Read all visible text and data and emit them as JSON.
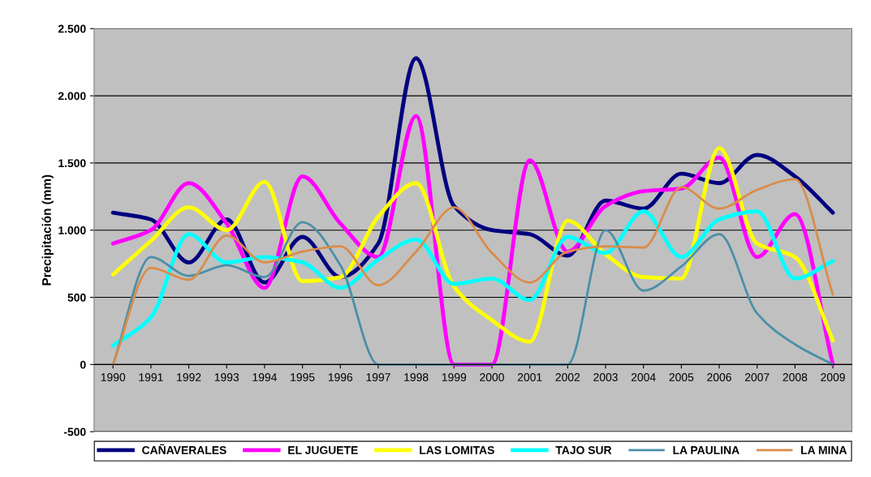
{
  "chart_data": {
    "type": "line",
    "ylabel": "Precipitación (mm)",
    "categories": [
      "1990",
      "1991",
      "1992",
      "1993",
      "1994",
      "1995",
      "1996",
      "1997",
      "1998",
      "1999",
      "2000",
      "2001",
      "2002",
      "2003",
      "2004",
      "2005",
      "2006",
      "2007",
      "2008",
      "2009"
    ],
    "ylim": [
      -500,
      2500
    ],
    "yticks": [
      {
        "value": -500,
        "label": "-500"
      },
      {
        "value": 0,
        "label": "0"
      },
      {
        "value": 500,
        "label": "500"
      },
      {
        "value": 1000,
        "label": "1.000"
      },
      {
        "value": 1500,
        "label": "1.500"
      },
      {
        "value": 2000,
        "label": "2.000"
      },
      {
        "value": 2500,
        "label": "2.500"
      }
    ],
    "grid": "y",
    "legend": "bottom",
    "marker": "none",
    "line_style": "solid",
    "series": [
      {
        "name": "CAÑAVERALES",
        "color": "#000080",
        "values": [
          1130,
          1080,
          760,
          1080,
          610,
          950,
          650,
          900,
          2280,
          1180,
          1000,
          970,
          810,
          1220,
          1160,
          1420,
          1350,
          1560,
          1400,
          1130
        ]
      },
      {
        "name": "EL JUGUETE",
        "color": "#ff00ff",
        "values": [
          900,
          1000,
          1350,
          1050,
          570,
          1400,
          1050,
          800,
          1850,
          0,
          0,
          1520,
          840,
          1180,
          1290,
          1310,
          1540,
          800,
          1120,
          0
        ]
      },
      {
        "name": "LAS LOMITAS",
        "color": "#ffff00",
        "values": [
          670,
          920,
          1170,
          1000,
          1360,
          620,
          650,
          1100,
          1350,
          580,
          330,
          170,
          1070,
          820,
          650,
          640,
          1610,
          900,
          800,
          180
        ]
      },
      {
        "name": "TAJO SUR",
        "color": "#00ffff",
        "values": [
          140,
          350,
          970,
          760,
          800,
          760,
          570,
          780,
          930,
          600,
          640,
          480,
          950,
          830,
          1140,
          800,
          1080,
          1140,
          640,
          770
        ]
      },
      {
        "name": "LA PAULINA",
        "color": "#4a8fa8",
        "values": [
          0,
          800,
          660,
          740,
          650,
          1060,
          740,
          0,
          0,
          0,
          0,
          0,
          0,
          1000,
          550,
          730,
          970,
          380,
          150,
          0
        ]
      },
      {
        "name": "LA MINA",
        "color": "#d98c4a",
        "values": [
          0,
          720,
          630,
          960,
          760,
          840,
          880,
          590,
          840,
          1170,
          830,
          610,
          840,
          880,
          870,
          1320,
          1160,
          1300,
          1380,
          520
        ]
      }
    ]
  }
}
